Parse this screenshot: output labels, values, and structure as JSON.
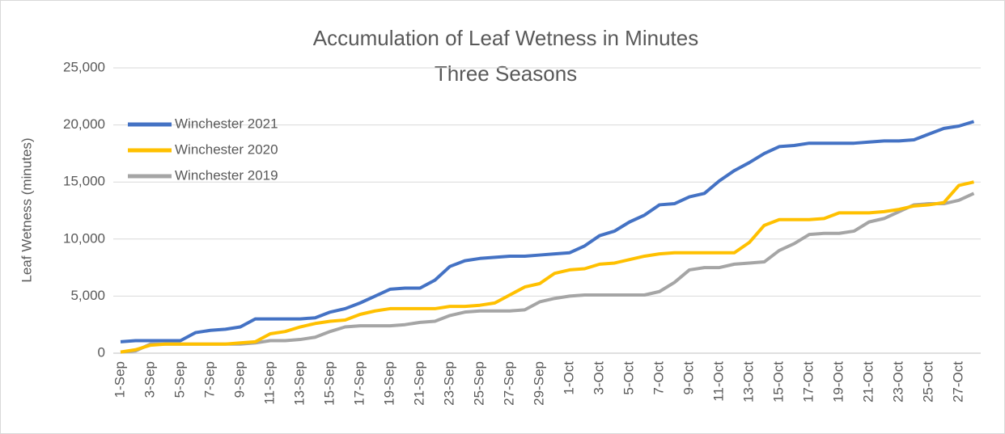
{
  "chart_data": {
    "type": "line",
    "title": "Accumulation of Leaf Wetness in Minutes",
    "subtitle": "Three Seasons",
    "y_label": "Leaf Wetness (minutes)",
    "categories": [
      "1-Sep",
      null,
      "3-Sep",
      null,
      "5-Sep",
      null,
      "7-Sep",
      null,
      "9-Sep",
      null,
      "11-Sep",
      null,
      "13-Sep",
      null,
      "15-Sep",
      null,
      "17-Sep",
      null,
      "19-Sep",
      null,
      "21-Sep",
      null,
      "23-Sep",
      null,
      "25-Sep",
      null,
      "27-Sep",
      null,
      "29-Sep",
      null,
      "1-Oct",
      null,
      "3-Oct",
      null,
      "5-Oct",
      null,
      "7-Oct",
      null,
      "9-Oct",
      null,
      "11-Oct",
      null,
      "13-Oct",
      null,
      "15-Oct",
      null,
      "17-Oct",
      null,
      "19-Oct",
      null,
      "21-Oct",
      null,
      "23-Oct",
      null,
      "25-Oct",
      null,
      "27-Oct",
      null
    ],
    "series": [
      {
        "name": "Winchester 2021",
        "color": "#4472c4",
        "values": [
          1000,
          1100,
          1100,
          1100,
          1100,
          1800,
          2000,
          2100,
          2300,
          3000,
          3000,
          3000,
          3000,
          3100,
          3600,
          3900,
          4400,
          5000,
          5600,
          5700,
          5700,
          6400,
          7600,
          8100,
          8300,
          8400,
          8500,
          8500,
          8600,
          8700,
          8800,
          9400,
          10300,
          10700,
          11500,
          12100,
          13000,
          13100,
          13700,
          14000,
          15100,
          16000,
          16700,
          17500,
          18100,
          18200,
          18400,
          18400,
          18400,
          18400,
          18500,
          18600,
          18600,
          18700,
          19200,
          19700,
          19900,
          20300
        ]
      },
      {
        "name": "Winchester 2020",
        "color": "#ffc000",
        "values": [
          100,
          300,
          700,
          800,
          800,
          800,
          800,
          800,
          900,
          1000,
          1700,
          1900,
          2300,
          2600,
          2800,
          2900,
          3400,
          3700,
          3900,
          3900,
          3900,
          3900,
          4100,
          4100,
          4200,
          4400,
          5100,
          5800,
          6100,
          7000,
          7300,
          7400,
          7800,
          7900,
          8200,
          8500,
          8700,
          8800,
          8800,
          8800,
          8800,
          8800,
          9700,
          11200,
          11700,
          11700,
          11700,
          11800,
          12300,
          12300,
          12300,
          12400,
          12600,
          12900,
          13000,
          13200,
          14700,
          15000
        ]
      },
      {
        "name": "Winchester 2019",
        "color": "#a5a5a5",
        "values": [
          100,
          200,
          800,
          800,
          800,
          800,
          800,
          800,
          800,
          900,
          1100,
          1100,
          1200,
          1400,
          1900,
          2300,
          2400,
          2400,
          2400,
          2500,
          2700,
          2800,
          3300,
          3600,
          3700,
          3700,
          3700,
          3800,
          4500,
          4800,
          5000,
          5100,
          5100,
          5100,
          5100,
          5100,
          5400,
          6200,
          7300,
          7500,
          7500,
          7800,
          7900,
          8000,
          9000,
          9600,
          10400,
          10500,
          10500,
          10700,
          11500,
          11800,
          12400,
          13000,
          13100,
          13100,
          13400,
          14000
        ]
      }
    ],
    "ylim": [
      0,
      25000
    ],
    "yticks": [
      0,
      {
        "value": 5000,
        "label": "5,000"
      },
      {
        "value": 10000,
        "label": "10,000"
      },
      {
        "value": 15000,
        "label": "15,000"
      },
      {
        "value": 20000,
        "label": "20,000"
      },
      {
        "value": 25000,
        "label": "25,000"
      }
    ],
    "grid": true,
    "legend": "upper-left"
  }
}
